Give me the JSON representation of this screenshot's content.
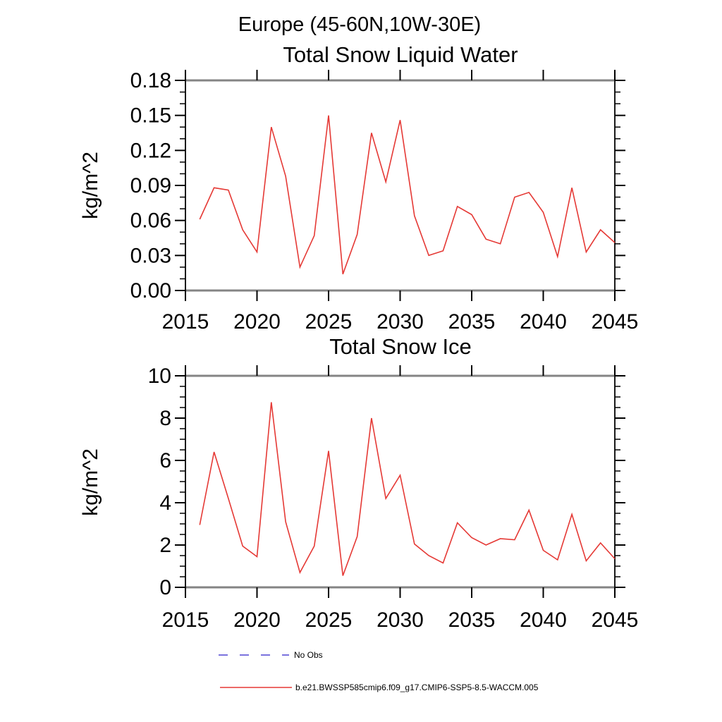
{
  "header": {
    "title": "Europe (45-60N,10W-30E)"
  },
  "legend": {
    "no_obs_label": "No Obs",
    "model_label": "b.e21.BWSSP585cmip6.f09_g17.CMIP6-SSP5-8.5-WACCM.005"
  },
  "colors": {
    "model_line": "#e53935",
    "no_obs_line": "#7b72de",
    "frame_horizontal": "#848484",
    "frame_vertical": "#1a1a1a",
    "tick": "#000000",
    "text": "#000000",
    "background": "#ffffff"
  },
  "chart_data": [
    {
      "type": "line",
      "title": "Total Snow Liquid Water",
      "xlabel": "",
      "ylabel": "kg/m^2",
      "xlim": [
        2015,
        2045
      ],
      "ylim": [
        0,
        0.18
      ],
      "grid": false,
      "legend_position": "below-figure",
      "xticks": [
        2015,
        2020,
        2025,
        2030,
        2035,
        2040,
        2045
      ],
      "xtick_labels": [
        "2015",
        "2020",
        "2025",
        "2030",
        "2035",
        "2040",
        "2045"
      ],
      "yticks": [
        0,
        0.03,
        0.06,
        0.09,
        0.12,
        0.15,
        0.18
      ],
      "ytick_labels": [
        "0.00",
        "0.03",
        "0.06",
        "0.09",
        "0.12",
        "0.15",
        "0.18"
      ],
      "y_minor_step": 0.01,
      "x": [
        2016,
        2017,
        2018,
        2019,
        2020,
        2021,
        2022,
        2023,
        2024,
        2025,
        2026,
        2027,
        2028,
        2029,
        2030,
        2031,
        2032,
        2033,
        2034,
        2035,
        2036,
        2037,
        2038,
        2039,
        2040,
        2041,
        2042,
        2043,
        2044,
        2045
      ],
      "series": [
        {
          "name": "b.e21.BWSSP585cmip6.f09_g17.CMIP6-SSP5-8.5-WACCM.005",
          "color_key": "model_line",
          "values": [
            0.061,
            0.088,
            0.086,
            0.052,
            0.033,
            0.14,
            0.098,
            0.02,
            0.047,
            0.15,
            0.014,
            0.048,
            0.135,
            0.093,
            0.146,
            0.064,
            0.03,
            0.034,
            0.072,
            0.065,
            0.044,
            0.04,
            0.08,
            0.084,
            0.067,
            0.029,
            0.088,
            0.033,
            0.052,
            0.041
          ]
        }
      ]
    },
    {
      "type": "line",
      "title": "Total Snow Ice",
      "xlabel": "",
      "ylabel": "kg/m^2",
      "xlim": [
        2015,
        2045
      ],
      "ylim": [
        0,
        10
      ],
      "grid": false,
      "legend_position": "below-figure",
      "xticks": [
        2015,
        2020,
        2025,
        2030,
        2035,
        2040,
        2045
      ],
      "xtick_labels": [
        "2015",
        "2020",
        "2025",
        "2030",
        "2035",
        "2040",
        "2045"
      ],
      "yticks": [
        0,
        2,
        4,
        6,
        8,
        10
      ],
      "ytick_labels": [
        "0",
        "2",
        "4",
        "6",
        "8",
        "10"
      ],
      "y_minor_step": 0.5,
      "x": [
        2016,
        2017,
        2018,
        2019,
        2020,
        2021,
        2022,
        2023,
        2024,
        2025,
        2026,
        2027,
        2028,
        2029,
        2030,
        2031,
        2032,
        2033,
        2034,
        2035,
        2036,
        2037,
        2038,
        2039,
        2040,
        2041,
        2042,
        2043,
        2044,
        2045
      ],
      "series": [
        {
          "name": "b.e21.BWSSP585cmip6.f09_g17.CMIP6-SSP5-8.5-WACCM.005",
          "color_key": "model_line",
          "values": [
            2.95,
            6.4,
            4.2,
            1.95,
            1.45,
            8.75,
            3.1,
            0.7,
            1.95,
            6.45,
            0.55,
            2.4,
            8.0,
            4.2,
            5.3,
            2.05,
            1.5,
            1.15,
            3.05,
            2.35,
            2.0,
            2.3,
            2.25,
            3.65,
            1.75,
            1.3,
            3.45,
            1.25,
            2.1,
            1.35
          ]
        }
      ]
    }
  ]
}
